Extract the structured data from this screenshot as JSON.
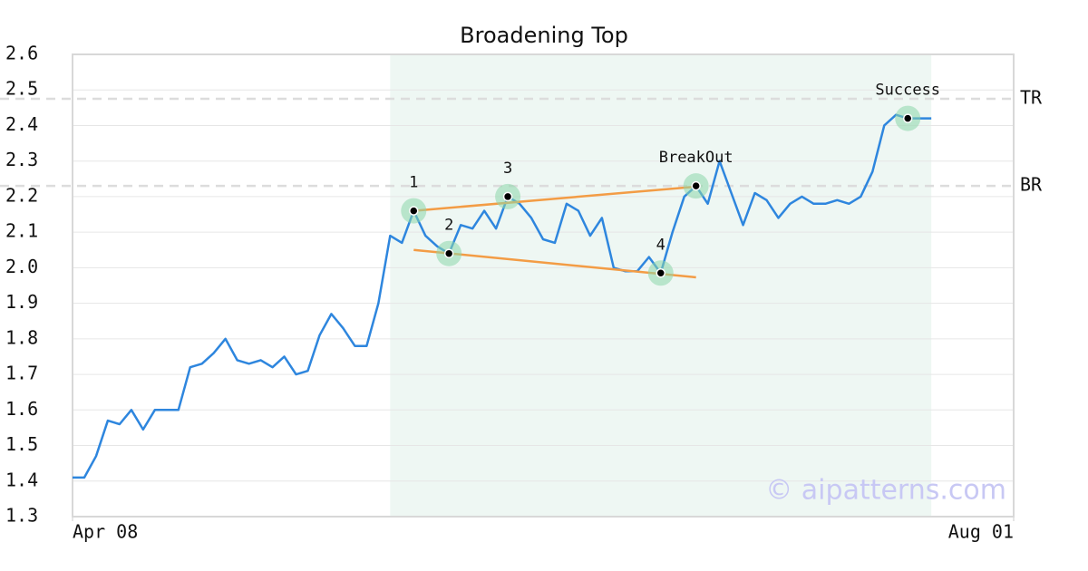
{
  "chart_data": {
    "type": "line",
    "title": "Broadening Top",
    "x": [
      0,
      1,
      2,
      3,
      4,
      5,
      6,
      7,
      8,
      9,
      10,
      11,
      12,
      13,
      14,
      15,
      16,
      17,
      18,
      19,
      20,
      21,
      22,
      23,
      24,
      25,
      26,
      27,
      28,
      29,
      30,
      31,
      32,
      33,
      34,
      35,
      36,
      37,
      38,
      39,
      40,
      41,
      42,
      43,
      44,
      45,
      46,
      47,
      48,
      49,
      50,
      51,
      52,
      53,
      54,
      55,
      56,
      57,
      58,
      59,
      60,
      61,
      62,
      63,
      64,
      65,
      66,
      67,
      68,
      69,
      70,
      71,
      72,
      73
    ],
    "series": [
      {
        "color": "#2e86de",
        "values": [
          1.41,
          1.41,
          1.47,
          1.57,
          1.56,
          1.6,
          1.545,
          1.6,
          1.6,
          1.6,
          1.72,
          1.73,
          1.76,
          1.8,
          1.74,
          1.73,
          1.74,
          1.72,
          1.75,
          1.7,
          1.71,
          1.81,
          1.87,
          1.83,
          1.78,
          1.78,
          1.9,
          2.09,
          2.07,
          2.16,
          2.09,
          2.06,
          2.04,
          2.12,
          2.11,
          2.16,
          2.11,
          2.2,
          2.18,
          2.14,
          2.08,
          2.07,
          2.18,
          2.16,
          2.09,
          2.14,
          2.0,
          1.99,
          1.99,
          2.03,
          1.985,
          2.1,
          2.2,
          2.23,
          2.18,
          2.3,
          2.21,
          2.12,
          2.21,
          2.19,
          2.14,
          2.18,
          2.2,
          2.18,
          2.18,
          2.19,
          2.18,
          2.2,
          2.27,
          2.4,
          2.43,
          2.42,
          2.42,
          2.42
        ]
      }
    ],
    "xlim": [
      0,
      80
    ],
    "xticks": [
      {
        "value": 0,
        "label": "Apr 08"
      },
      {
        "value": 80,
        "label": "Aug 01"
      }
    ],
    "ylim": [
      1.3,
      2.6
    ],
    "yticks": [
      1.3,
      1.4,
      1.5,
      1.6,
      1.7,
      1.8,
      1.9,
      {
        "value": 2,
        "label": "2.0"
      },
      2.1,
      2.2,
      2.3,
      2.4,
      2.5,
      2.6
    ],
    "grid": true,
    "pattern_span": [
      27,
      73
    ],
    "levels": [
      {
        "label": "TR",
        "value": 2.475
      },
      {
        "label": "BR",
        "value": 2.23
      }
    ],
    "trendlines": [
      {
        "color": "#f39c45",
        "x": [
          29,
          53
        ],
        "y": [
          2.16,
          2.228
        ]
      },
      {
        "color": "#f39c45",
        "x": [
          29,
          53
        ],
        "y": [
          2.05,
          1.973
        ]
      }
    ],
    "points": [
      {
        "label": "1",
        "x": 29,
        "y": 2.16
      },
      {
        "label": "2",
        "x": 32,
        "y": 2.04
      },
      {
        "label": "3",
        "x": 37,
        "y": 2.2
      },
      {
        "label": "4",
        "x": 50,
        "y": 1.985
      },
      {
        "label": "BreakOut",
        "x": 53,
        "y": 2.23
      },
      {
        "label": "Success",
        "x": 71,
        "y": 2.42
      }
    ],
    "watermark": "© aipatterns.com"
  }
}
